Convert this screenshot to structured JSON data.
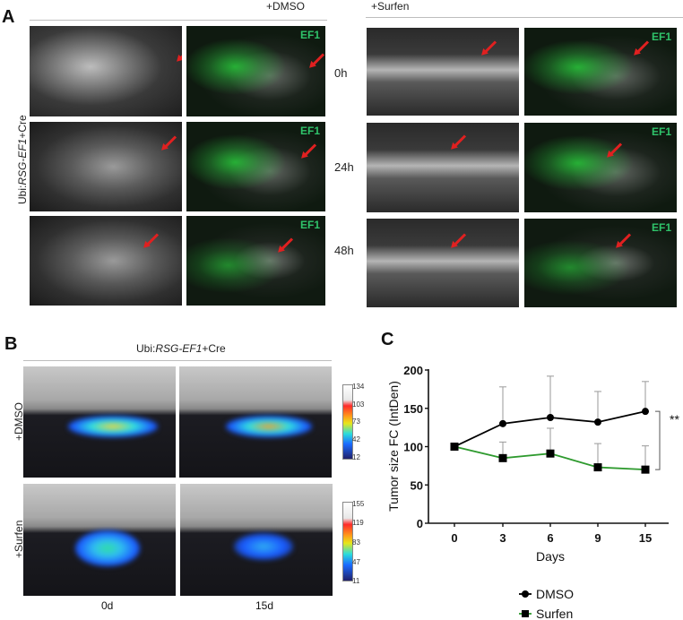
{
  "panel_a": {
    "letter": "A",
    "conditions": [
      "+DMSO",
      "+Surfen"
    ],
    "genotype_label": "Ubi:RSG-EF1+Cre",
    "genotype_prefix": "Ubi:",
    "genotype_italic": "RSG-EF1",
    "genotype_suffix": "+Cre",
    "times": [
      "0h",
      "24h",
      "48h"
    ],
    "channel_label": "EF1"
  },
  "panel_b": {
    "letter": "B",
    "header_prefix": "Ubi:",
    "header_italic": "RSG-EF1",
    "header_suffix": "+Cre",
    "rows": [
      "+DMSO",
      "+Surfen"
    ],
    "columns": [
      "0d",
      "15d"
    ],
    "colorbar_dmso": [
      "134",
      "103",
      "73",
      "42",
      "12"
    ],
    "colorbar_surfen": [
      "155",
      "119",
      "83",
      "47",
      "11"
    ]
  },
  "panel_c": {
    "letter": "C",
    "significance": "**",
    "legend": [
      "DMSO",
      "Surfen"
    ]
  },
  "chart_data": {
    "type": "line",
    "title": "",
    "xlabel": "Days",
    "ylabel": "Tumor size FC (IntDen)",
    "x": [
      0,
      3,
      6,
      9,
      15
    ],
    "x_tick_labels": [
      "0",
      "3",
      "6",
      "9",
      "15"
    ],
    "y_ticks": [
      0,
      50,
      100,
      150,
      200
    ],
    "ylim": [
      0,
      200
    ],
    "grid": false,
    "legend_position": "bottom",
    "series": [
      {
        "name": "DMSO",
        "color": "#000000",
        "marker": "circle",
        "values": [
          100,
          130,
          138,
          132,
          146
        ],
        "error_upper": [
          100,
          178,
          192,
          172,
          185
        ]
      },
      {
        "name": "Surfen",
        "color": "#2e9a2e",
        "marker": "square",
        "values": [
          100,
          85,
          91,
          73,
          70
        ],
        "error_upper": [
          100,
          106,
          124,
          104,
          101
        ]
      }
    ],
    "annotations": [
      {
        "text": "**",
        "between": [
          "DMSO",
          "Surfen"
        ],
        "at_x": 15
      }
    ]
  }
}
